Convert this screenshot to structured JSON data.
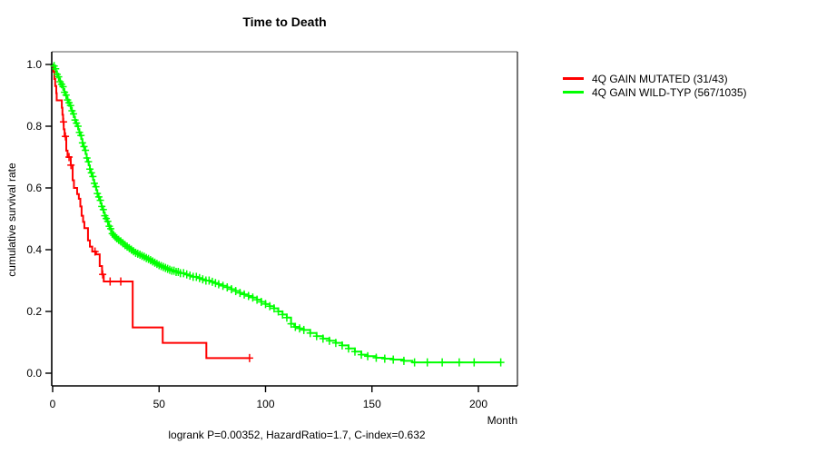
{
  "title": "Time to Death",
  "caption": "logrank P=0.00352, HazardRatio=1.7, C-index=0.632",
  "axes": {
    "x": {
      "label": "Month",
      "ticks": [
        0,
        50,
        100,
        150,
        200
      ],
      "range": [
        0,
        218
      ]
    },
    "y": {
      "label": "cumulative survival rate",
      "ticks": [
        0.0,
        0.2,
        0.4,
        0.6,
        0.8,
        1.0
      ],
      "range": [
        0,
        1
      ]
    }
  },
  "legend": {
    "position": "right",
    "items": [
      {
        "label": "4Q GAIN MUTATED (31/43)",
        "color": "#ff0000"
      },
      {
        "label": "4Q GAIN WILD-TYP (567/1035)",
        "color": "#00ff00"
      }
    ]
  },
  "chart_data": {
    "type": "line",
    "subtype": "kaplan-meier-step",
    "title": "Time to Death",
    "xlabel": "Month",
    "ylabel": "cumulative survival rate",
    "xlim": [
      0,
      218
    ],
    "ylim": [
      0,
      1
    ],
    "grid": false,
    "series": [
      {
        "name": "4Q GAIN MUTATED (31/43)",
        "color": "#ff0000",
        "end_month": 92.5,
        "steps": [
          [
            0,
            1.0
          ],
          [
            0.4,
            0.977
          ],
          [
            0.8,
            0.953
          ],
          [
            1.2,
            0.93
          ],
          [
            1.7,
            0.907
          ],
          [
            1.9,
            0.884
          ],
          [
            4.3,
            0.86
          ],
          [
            4.6,
            0.837
          ],
          [
            4.9,
            0.814
          ],
          [
            5.2,
            0.79
          ],
          [
            5.6,
            0.767
          ],
          [
            6.4,
            0.721
          ],
          [
            7.0,
            0.7
          ],
          [
            8.5,
            0.674
          ],
          [
            9.4,
            0.625
          ],
          [
            10.0,
            0.6
          ],
          [
            11.5,
            0.58
          ],
          [
            12.3,
            0.565
          ],
          [
            13.0,
            0.54
          ],
          [
            13.6,
            0.51
          ],
          [
            14.3,
            0.49
          ],
          [
            14.9,
            0.47
          ],
          [
            16.6,
            0.43
          ],
          [
            17.5,
            0.41
          ],
          [
            18.6,
            0.394
          ],
          [
            20.4,
            0.385
          ],
          [
            22.1,
            0.347
          ],
          [
            23.2,
            0.32
          ],
          [
            24.0,
            0.297
          ],
          [
            37.6,
            0.148
          ],
          [
            51.7,
            0.098
          ],
          [
            72.2,
            0.049
          ]
        ],
        "censor_months": [
          5.1,
          6.0,
          7.7,
          8.6,
          19.9,
          23.5,
          27.0,
          32.0,
          92.5
        ]
      },
      {
        "name": "4Q GAIN WILD-TYP (567/1035)",
        "color": "#00ff00",
        "end_month": 210.5,
        "steps": [
          [
            0,
            1.0
          ],
          [
            0.5,
            0.995
          ],
          [
            1,
            0.986
          ],
          [
            1.5,
            0.976
          ],
          [
            2,
            0.968
          ],
          [
            2.5,
            0.96
          ],
          [
            3,
            0.952
          ],
          [
            3.5,
            0.944
          ],
          [
            4,
            0.936
          ],
          [
            4.5,
            0.928
          ],
          [
            5,
            0.92
          ],
          [
            5.5,
            0.91
          ],
          [
            6,
            0.901
          ],
          [
            6.5,
            0.893
          ],
          [
            7,
            0.885
          ],
          [
            7.5,
            0.876
          ],
          [
            8,
            0.867
          ],
          [
            8.5,
            0.858
          ],
          [
            9,
            0.85
          ],
          [
            9.5,
            0.84
          ],
          [
            10,
            0.83
          ],
          [
            10.5,
            0.82
          ],
          [
            11,
            0.81
          ],
          [
            11.5,
            0.8
          ],
          [
            12,
            0.79
          ],
          [
            12.5,
            0.78
          ],
          [
            13,
            0.77
          ],
          [
            13.5,
            0.758
          ],
          [
            14,
            0.746
          ],
          [
            14.5,
            0.734
          ],
          [
            15,
            0.722
          ],
          [
            15.5,
            0.71
          ],
          [
            16,
            0.697
          ],
          [
            16.5,
            0.685
          ],
          [
            17,
            0.673
          ],
          [
            17.5,
            0.661
          ],
          [
            18,
            0.649
          ],
          [
            18.5,
            0.637
          ],
          [
            19,
            0.626
          ],
          [
            19.5,
            0.615
          ],
          [
            20,
            0.604
          ],
          [
            20.5,
            0.593
          ],
          [
            21,
            0.582
          ],
          [
            21.5,
            0.571
          ],
          [
            22,
            0.56
          ],
          [
            22.5,
            0.55
          ],
          [
            23,
            0.54
          ],
          [
            23.5,
            0.53
          ],
          [
            24,
            0.52
          ],
          [
            24.5,
            0.51
          ],
          [
            25,
            0.501
          ],
          [
            25.5,
            0.492
          ],
          [
            26,
            0.484
          ],
          [
            26.5,
            0.476
          ],
          [
            27,
            0.468
          ],
          [
            27.5,
            0.46
          ],
          [
            28,
            0.452
          ],
          [
            28.5,
            0.447
          ],
          [
            29,
            0.442
          ],
          [
            30,
            0.437
          ],
          [
            31,
            0.432
          ],
          [
            32,
            0.427
          ],
          [
            33,
            0.421
          ],
          [
            34,
            0.415
          ],
          [
            35,
            0.41
          ],
          [
            36,
            0.405
          ],
          [
            37,
            0.4
          ],
          [
            38,
            0.395
          ],
          [
            39,
            0.39
          ],
          [
            40,
            0.387
          ],
          [
            41,
            0.384
          ],
          [
            42,
            0.38
          ],
          [
            43,
            0.377
          ],
          [
            44,
            0.373
          ],
          [
            45,
            0.37
          ],
          [
            46,
            0.366
          ],
          [
            47,
            0.362
          ],
          [
            48,
            0.358
          ],
          [
            49,
            0.354
          ],
          [
            50,
            0.35
          ],
          [
            51,
            0.347
          ],
          [
            52,
            0.344
          ],
          [
            53,
            0.341
          ],
          [
            54,
            0.338
          ],
          [
            55,
            0.335
          ],
          [
            56,
            0.332
          ],
          [
            58,
            0.328
          ],
          [
            60,
            0.324
          ],
          [
            62,
            0.32
          ],
          [
            64,
            0.316
          ],
          [
            66,
            0.312
          ],
          [
            68,
            0.308
          ],
          [
            70,
            0.304
          ],
          [
            72,
            0.3
          ],
          [
            74,
            0.296
          ],
          [
            76,
            0.292
          ],
          [
            78,
            0.288
          ],
          [
            80,
            0.283
          ],
          [
            82,
            0.278
          ],
          [
            84,
            0.272
          ],
          [
            86,
            0.266
          ],
          [
            88,
            0.26
          ],
          [
            90,
            0.255
          ],
          [
            92,
            0.25
          ],
          [
            94,
            0.245
          ],
          [
            96,
            0.238
          ],
          [
            98,
            0.231
          ],
          [
            100,
            0.224
          ],
          [
            102,
            0.217
          ],
          [
            104,
            0.21
          ],
          [
            106,
            0.2
          ],
          [
            108,
            0.19
          ],
          [
            110,
            0.18
          ],
          [
            112,
            0.16
          ],
          [
            113.5,
            0.15
          ],
          [
            116,
            0.145
          ],
          [
            118,
            0.14
          ],
          [
            121,
            0.13
          ],
          [
            124,
            0.12
          ],
          [
            127,
            0.112
          ],
          [
            130,
            0.105
          ],
          [
            133,
            0.098
          ],
          [
            136,
            0.09
          ],
          [
            139,
            0.08
          ],
          [
            142,
            0.07
          ],
          [
            145,
            0.06
          ],
          [
            148,
            0.055
          ],
          [
            152,
            0.05
          ],
          [
            156,
            0.047
          ],
          [
            160,
            0.044
          ],
          [
            165,
            0.04
          ],
          [
            169,
            0.035
          ]
        ],
        "censor_months": [
          0.7,
          1.4,
          2.1,
          2.8,
          3.5,
          4.2,
          4.9,
          5.6,
          6.3,
          7,
          7.7,
          8.4,
          9.1,
          9.8,
          10.5,
          11.2,
          11.9,
          12.6,
          13.3,
          14,
          14.7,
          15.4,
          16.1,
          16.8,
          17.5,
          18.2,
          18.9,
          19.6,
          20.3,
          21,
          21.7,
          22.4,
          23.1,
          23.8,
          24.5,
          25.2,
          25.9,
          26.6,
          27.3,
          28,
          28.7,
          29.4,
          30.1,
          31,
          32,
          33,
          34,
          35,
          36,
          37,
          38,
          39,
          40,
          41,
          42,
          43,
          44,
          45,
          46,
          47,
          48,
          49,
          50,
          51,
          52,
          53,
          54,
          55,
          56,
          57,
          58,
          59,
          60,
          61.5,
          63,
          64.5,
          66,
          67.5,
          69,
          70.5,
          72,
          73.5,
          75,
          76.5,
          78,
          80,
          82,
          84,
          86,
          88,
          90,
          92,
          94,
          96,
          98,
          100,
          102,
          104,
          106,
          108,
          110,
          112,
          114,
          116,
          118,
          121,
          124,
          127,
          130,
          133,
          136,
          139,
          142,
          145,
          148,
          152,
          156,
          160,
          165,
          170,
          176,
          183,
          191,
          198,
          210.5
        ]
      }
    ]
  }
}
